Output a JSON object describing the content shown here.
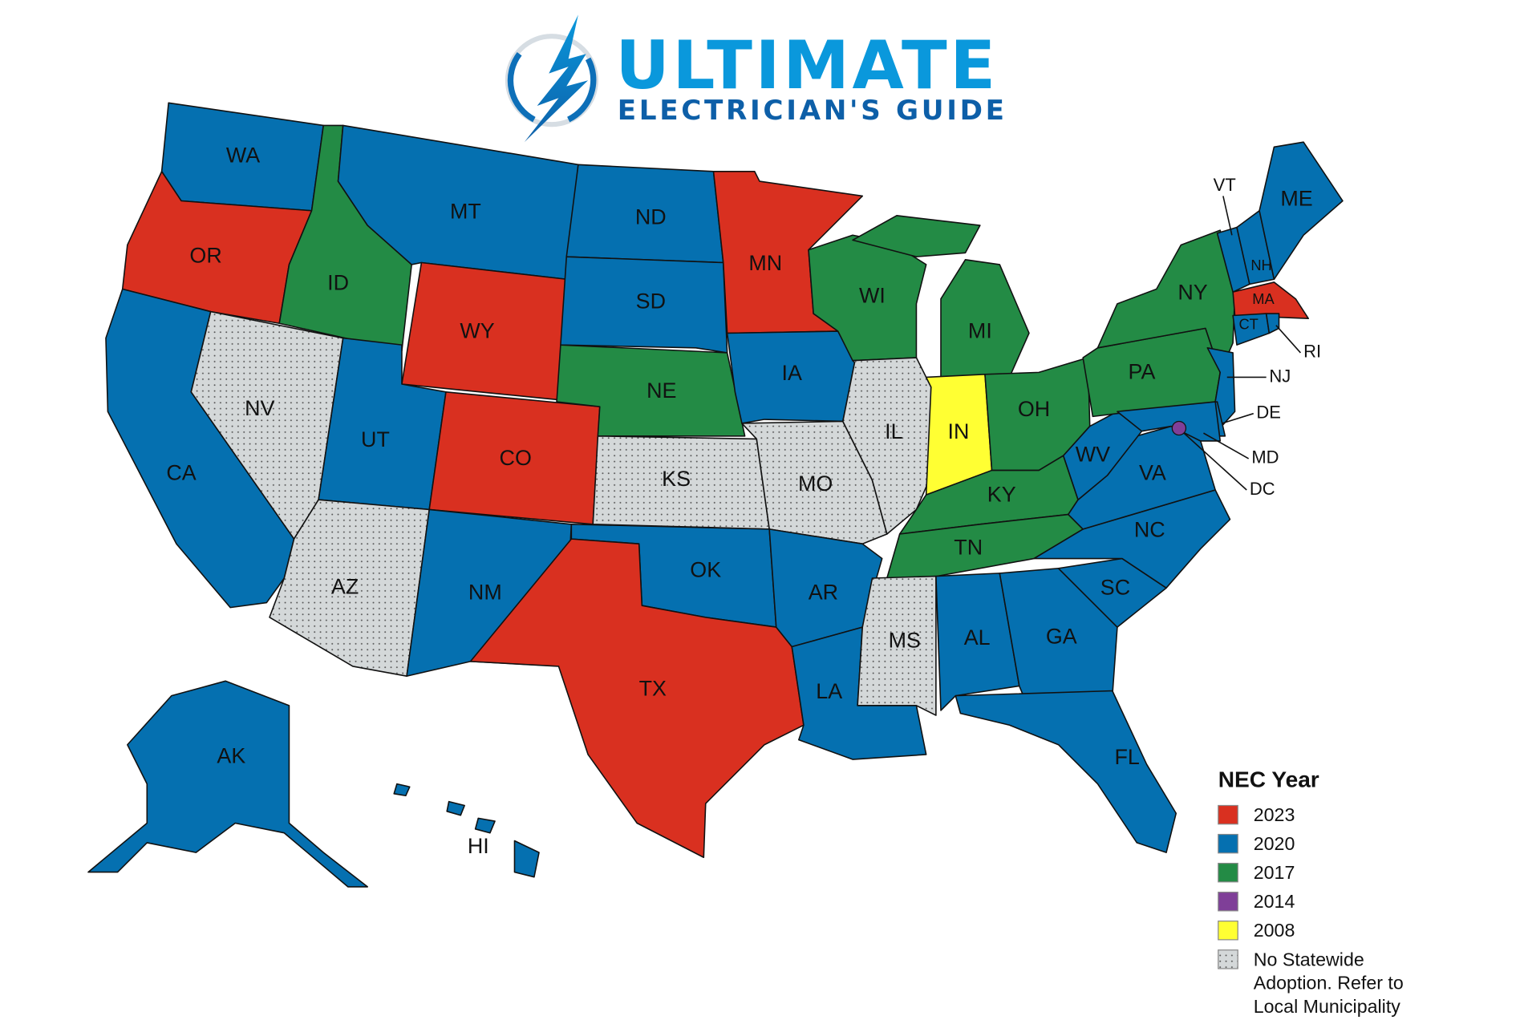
{
  "logo": {
    "line1": "ULTIMATE",
    "line2": "ELECTRICIAN'S GUIDE",
    "icon": "lightning-bolt-circle-icon",
    "colors": {
      "primary": "#0a98dc",
      "secondary": "#0d5fa8"
    }
  },
  "legend": {
    "title": "NEC Year",
    "items": [
      {
        "key": "2023",
        "label": "2023",
        "color": "#d93020"
      },
      {
        "key": "2020",
        "label": "2020",
        "color": "#0570b0"
      },
      {
        "key": "2017",
        "label": "2017",
        "color": "#238b45"
      },
      {
        "key": "2014",
        "label": "2014",
        "color": "#7f3f98"
      },
      {
        "key": "2008",
        "label": "2008",
        "color": "#ffff33"
      },
      {
        "key": "none",
        "label_lines": [
          "No Statewide",
          "Adoption. Refer to",
          "Local Municipality"
        ],
        "color": "#d4d8d9",
        "pattern": "dotted"
      }
    ]
  },
  "states": {
    "WA": "2020",
    "OR": "2023",
    "CA": "2020",
    "NV": "none",
    "ID": "2017",
    "MT": "2020",
    "WY": "2023",
    "UT": "2020",
    "CO": "2023",
    "AZ": "none",
    "NM": "2020",
    "ND": "2020",
    "SD": "2020",
    "NE": "2017",
    "KS": "none",
    "OK": "2020",
    "TX": "2023",
    "MN": "2023",
    "IA": "2020",
    "MO": "none",
    "AR": "2020",
    "LA": "2020",
    "WI": "2017",
    "IL": "none",
    "MI": "2017",
    "IN": "2008",
    "OH": "2017",
    "KY": "2017",
    "TN": "2017",
    "MS": "none",
    "AL": "2020",
    "GA": "2020",
    "FL": "2020",
    "SC": "2020",
    "NC": "2020",
    "VA": "2020",
    "WV": "2020",
    "PA": "2017",
    "NY": "2017",
    "NJ": "2020",
    "DE": "2020",
    "MD": "2020",
    "DC": "2014",
    "VT": "2020",
    "NH": "2020",
    "ME": "2020",
    "MA": "2023",
    "CT": "2020",
    "RI": "2020",
    "AK": "2020",
    "HI": "2020"
  }
}
